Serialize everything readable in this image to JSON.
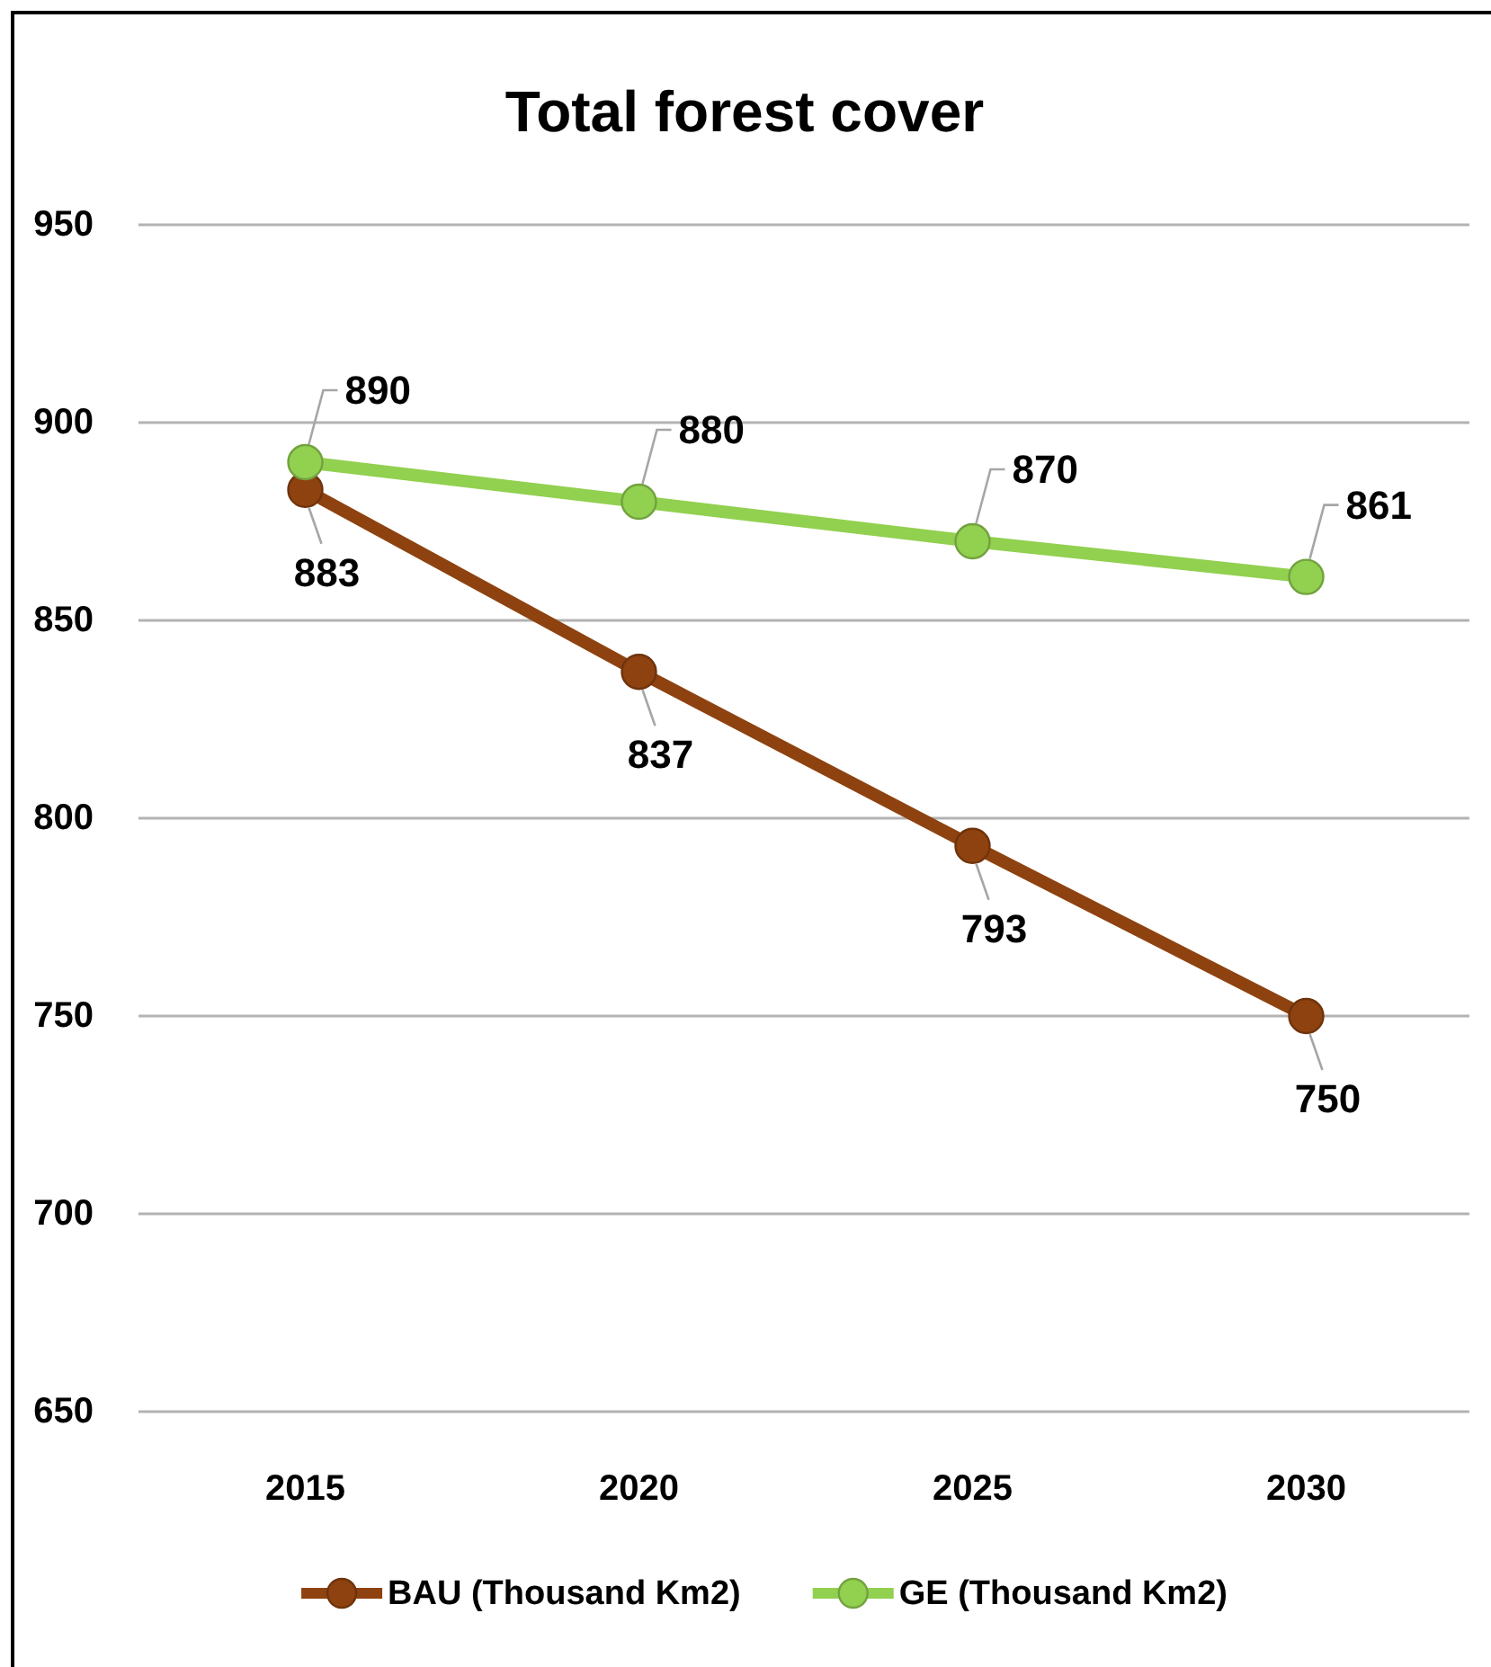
{
  "chart_data": {
    "type": "line",
    "title": "Total forest cover",
    "categories": [
      "2015",
      "2020",
      "2025",
      "2030"
    ],
    "series": [
      {
        "name": "BAU (Thousand Km2)",
        "color": "#8e420f",
        "values": [
          883,
          837,
          793,
          750
        ]
      },
      {
        "name": "GE (Thousand Km2)",
        "color": "#92d050",
        "values": [
          890,
          880,
          870,
          861
        ]
      }
    ],
    "ylim": [
      650,
      950
    ],
    "yticks": [
      650,
      700,
      750,
      800,
      850,
      900,
      950
    ],
    "grid": "y",
    "legend": "bottom",
    "marker": "circle",
    "line_style": "solid",
    "data_labels": true
  }
}
